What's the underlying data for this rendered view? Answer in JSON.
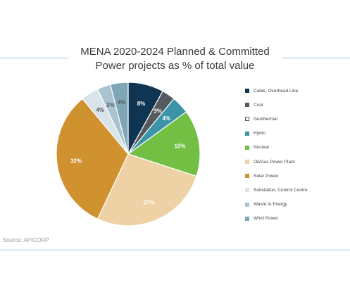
{
  "title_line1": "MENA 2020-2024 Planned & Committed",
  "title_line2": "Power projects as % of total value",
  "source": "Source: APICORP",
  "chart_data": {
    "type": "pie",
    "title": "MENA 2020-2024 Planned & Committed Power projects as % of total value",
    "categories": [
      "Cable, Overhead Line",
      "Coal",
      "Geothermal",
      "Hydro",
      "Nuclear",
      "Oil/Gas Power Plant",
      "Solar Power",
      "Substation, Control Centre",
      "Waste to Energy",
      "Wind Power"
    ],
    "values": [
      8,
      3,
      0,
      4,
      15,
      27,
      32,
      4,
      3,
      4
    ],
    "labels": [
      "8%",
      "3%",
      "",
      "4%",
      "15%",
      "27%",
      "32%",
      "4%",
      "3%",
      "4%"
    ],
    "colors": [
      "#0f3552",
      "#555a5e",
      "#ffffff",
      "#3c94a8",
      "#72bf44",
      "#eed2a6",
      "#cf922e",
      "#d8e3ea",
      "#a9c3cf",
      "#7fa6b5"
    ],
    "label_colors": [
      "#ffffff",
      "#ffffff",
      "#ffffff",
      "#ffffff",
      "#ffffff",
      "#ffffff",
      "#ffffff",
      "#555555",
      "#555555",
      "#555555"
    ],
    "legend_position": "right"
  }
}
